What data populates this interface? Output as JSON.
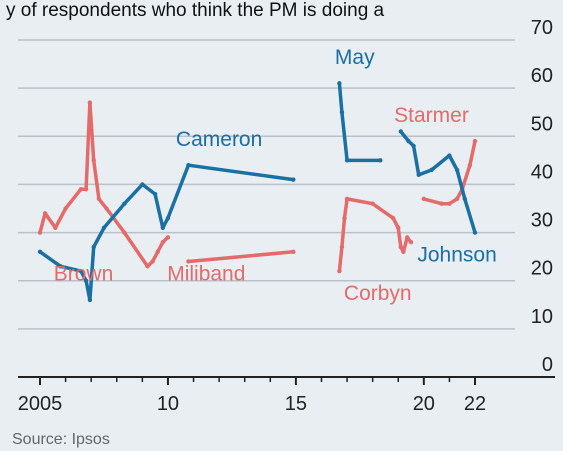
{
  "header_text": "y of respondents who think the PM is doing a",
  "source": "Source: Ipsos",
  "colors": {
    "blue": "#1a6fa3",
    "red": "#e56a6a",
    "grid": "#b9c2c8",
    "axis": "#222222",
    "text": "#222222",
    "background": "#e8eef2"
  },
  "chart_data": {
    "type": "line",
    "title": "",
    "xlabel": "",
    "ylabel": "",
    "xlim": [
      2005,
      2023
    ],
    "ylim": [
      0,
      70
    ],
    "grid": true,
    "yticks": [
      0,
      10,
      20,
      30,
      40,
      50,
      60,
      70
    ],
    "xticks": [
      2005,
      2010,
      2015,
      2020,
      2022
    ],
    "xtick_labels": [
      "2005",
      "10",
      "15",
      "20",
      "22"
    ],
    "series": [
      {
        "name": "Brown",
        "color": "red",
        "label_pos": [
          2006.7,
          20
        ],
        "points": [
          [
            2005.0,
            30
          ],
          [
            2005.2,
            34
          ],
          [
            2005.6,
            31
          ],
          [
            2006.0,
            35
          ],
          [
            2006.6,
            39
          ],
          [
            2006.8,
            39
          ],
          [
            2006.95,
            57
          ],
          [
            2007.1,
            45
          ],
          [
            2007.3,
            37
          ],
          [
            2007.6,
            35
          ],
          [
            2008.3,
            30
          ],
          [
            2009.2,
            23
          ],
          [
            2009.4,
            24
          ],
          [
            2009.6,
            26
          ],
          [
            2009.8,
            28
          ],
          [
            2010.0,
            29
          ]
        ]
      },
      {
        "name": "Miliband",
        "color": "red",
        "label_pos": [
          2011.5,
          20
        ],
        "points": [
          [
            2010.8,
            24
          ],
          [
            2014.9,
            26
          ]
        ]
      },
      {
        "name": "Corbyn",
        "color": "red",
        "label_pos": [
          2018.2,
          16
        ],
        "points": [
          [
            2016.7,
            22
          ],
          [
            2016.8,
            27
          ],
          [
            2016.9,
            33
          ],
          [
            2017.0,
            37
          ],
          [
            2018.0,
            36
          ],
          [
            2018.8,
            33
          ],
          [
            2019.0,
            31
          ],
          [
            2019.1,
            27
          ],
          [
            2019.2,
            26
          ],
          [
            2019.35,
            29
          ],
          [
            2019.5,
            28
          ]
        ]
      },
      {
        "name": "Starmer",
        "color": "red",
        "label_pos": [
          2020.3,
          53
        ],
        "points": [
          [
            2020.0,
            37
          ],
          [
            2020.7,
            36
          ],
          [
            2021.0,
            36
          ],
          [
            2021.3,
            37
          ],
          [
            2021.5,
            39
          ],
          [
            2021.8,
            44
          ],
          [
            2022.0,
            49
          ]
        ]
      },
      {
        "name": "Cameron",
        "color": "blue",
        "label_pos": [
          2012.0,
          48
        ],
        "points": [
          [
            2005.0,
            26
          ],
          [
            2005.8,
            23
          ],
          [
            2006.6,
            22
          ],
          [
            2006.8,
            20
          ],
          [
            2006.95,
            16
          ],
          [
            2007.1,
            27
          ],
          [
            2007.5,
            31
          ],
          [
            2008.3,
            36
          ],
          [
            2009.0,
            40
          ],
          [
            2009.5,
            38
          ],
          [
            2009.8,
            31
          ],
          [
            2010.0,
            33
          ],
          [
            2010.8,
            44
          ],
          [
            2014.9,
            41
          ]
        ]
      },
      {
        "name": "May",
        "color": "blue",
        "label_pos": [
          2017.3,
          65
        ],
        "points": [
          [
            2016.7,
            61
          ],
          [
            2016.8,
            55
          ],
          [
            2017.0,
            45
          ],
          [
            2018.3,
            45
          ]
        ]
      },
      {
        "name": "Johnson",
        "color": "blue",
        "label_pos": [
          2021.3,
          24
        ],
        "points": [
          [
            2019.1,
            51
          ],
          [
            2019.4,
            49
          ],
          [
            2019.6,
            48
          ],
          [
            2019.8,
            42
          ],
          [
            2020.3,
            43
          ],
          [
            2021.0,
            46
          ],
          [
            2021.3,
            43
          ],
          [
            2021.6,
            37
          ],
          [
            2022.0,
            30
          ]
        ]
      }
    ]
  }
}
